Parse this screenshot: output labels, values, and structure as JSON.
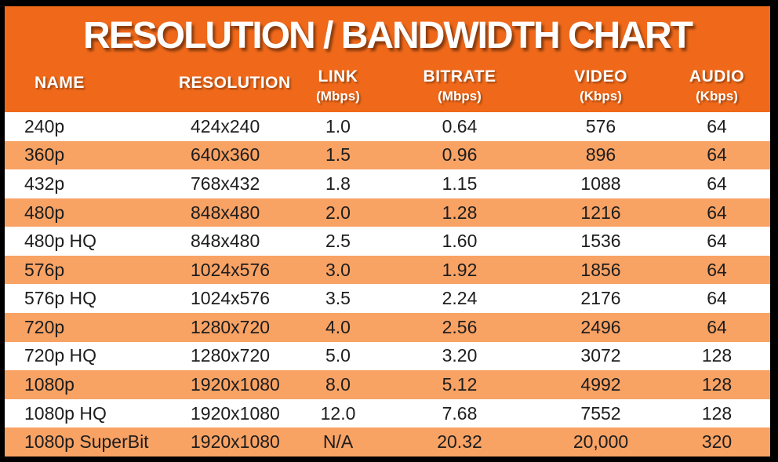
{
  "title": "RESOLUTION / BANDWIDTH CHART",
  "chart_data": {
    "type": "table",
    "title": "RESOLUTION / BANDWIDTH CHART",
    "columns": [
      {
        "label": "NAME",
        "unit": ""
      },
      {
        "label": "RESOLUTION",
        "unit": ""
      },
      {
        "label": "LINK",
        "unit": "(Mbps)"
      },
      {
        "label": "BITRATE",
        "unit": "(Mbps)"
      },
      {
        "label": "VIDEO",
        "unit": "(Kbps)"
      },
      {
        "label": "AUDIO",
        "unit": "(Kbps)"
      }
    ],
    "rows": [
      [
        "240p",
        "424x240",
        "1.0",
        "0.64",
        "576",
        "64"
      ],
      [
        "360p",
        "640x360",
        "1.5",
        "0.96",
        "896",
        "64"
      ],
      [
        "432p",
        "768x432",
        "1.8",
        "1.15",
        "1088",
        "64"
      ],
      [
        "480p",
        "848x480",
        "2.0",
        "1.28",
        "1216",
        "64"
      ],
      [
        "480p HQ",
        "848x480",
        "2.5",
        "1.60",
        "1536",
        "64"
      ],
      [
        "576p",
        "1024x576",
        "3.0",
        "1.92",
        "1856",
        "64"
      ],
      [
        "576p HQ",
        "1024x576",
        "3.5",
        "2.24",
        "2176",
        "64"
      ],
      [
        "720p",
        "1280x720",
        "4.0",
        "2.56",
        "2496",
        "64"
      ],
      [
        "720p HQ",
        "1280x720",
        "5.0",
        "3.20",
        "3072",
        "128"
      ],
      [
        "1080p",
        "1920x1080",
        "8.0",
        "5.12",
        "4992",
        "128"
      ],
      [
        "1080p HQ",
        "1920x1080",
        "12.0",
        "7.68",
        "7552",
        "128"
      ],
      [
        "1080p SuperBit",
        "1920x1080",
        "N/A",
        "20.32",
        "20,000",
        "320"
      ]
    ],
    "layout": {
      "striped": true,
      "stripe_start": "white"
    }
  },
  "colors": {
    "header_orange": "#F0691A",
    "row_orange": "#F8A264",
    "row_white": "#FFFFFF",
    "border_black": "#000000",
    "header_text": "#FFFFFF",
    "body_text": "#1D1D1D"
  }
}
